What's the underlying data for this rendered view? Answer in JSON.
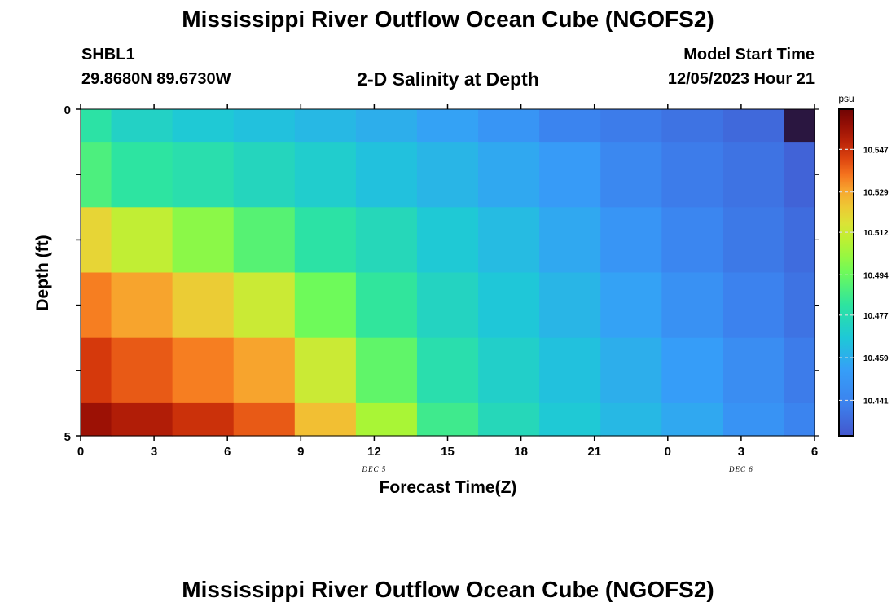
{
  "header": {
    "title": "Mississippi River Outflow Ocean Cube (NGOFS2)",
    "station": "SHBL1",
    "coords": "29.8680N  89.6730W",
    "subtitle": "2-D Salinity at Depth",
    "model_start_label": "Model Start Time",
    "model_start_value": "12/05/2023 Hour 21"
  },
  "footer": {
    "title": "Mississippi River Outflow Ocean Cube (NGOFS2)"
  },
  "chart_data": {
    "type": "heatmap",
    "xlabel": "Forecast Time(Z)",
    "ylabel": "Depth (ft)",
    "x_tick_labels": [
      "0",
      "3",
      "6",
      "9",
      "12",
      "15",
      "18",
      "21",
      "0",
      "3",
      "6"
    ],
    "x_forecast_hours": [
      0,
      3,
      6,
      9,
      12,
      15,
      18,
      21,
      24,
      27,
      30
    ],
    "xlim": [
      0,
      30
    ],
    "date_labels": [
      {
        "text": "DEC 5",
        "x": 12
      },
      {
        "text": "DEC 6",
        "x": 27
      }
    ],
    "y_tick_labels": [
      "0",
      "5"
    ],
    "ylim": [
      0,
      5
    ],
    "colorbar": {
      "unit": "psu",
      "range": [
        10.426,
        10.564
      ],
      "tick_values": [
        "10.547",
        "10.529",
        "10.512",
        "10.494",
        "10.477",
        "10.459",
        "10.441"
      ]
    },
    "col_edges": [
      0,
      1.25,
      3.75,
      6.25,
      8.75,
      11.25,
      13.75,
      16.25,
      18.75,
      21.25,
      23.75,
      26.25,
      28.75,
      30
    ],
    "row_edges": [
      0,
      0.5,
      1.5,
      2.5,
      3.5,
      4.5,
      5
    ],
    "values": [
      [
        10.48,
        10.472,
        10.468,
        10.465,
        10.462,
        10.459,
        10.455,
        10.449,
        10.441,
        10.438,
        10.435,
        10.432,
        10.4
      ],
      [
        10.488,
        10.481,
        10.478,
        10.474,
        10.47,
        10.465,
        10.461,
        10.457,
        10.452,
        10.443,
        10.438,
        10.435,
        10.43
      ],
      [
        10.52,
        10.51,
        10.5,
        10.49,
        10.48,
        10.475,
        10.468,
        10.463,
        10.457,
        10.449,
        10.442,
        10.437,
        10.433
      ],
      [
        10.535,
        10.53,
        10.522,
        10.512,
        10.495,
        10.482,
        10.473,
        10.467,
        10.461,
        10.455,
        10.447,
        10.44,
        10.435
      ],
      [
        10.545,
        10.54,
        10.535,
        10.53,
        10.512,
        10.492,
        10.478,
        10.471,
        10.465,
        10.459,
        10.453,
        10.445,
        10.438
      ],
      [
        10.556,
        10.552,
        10.547,
        10.54,
        10.525,
        10.505,
        10.485,
        10.475,
        10.468,
        10.462,
        10.457,
        10.448,
        10.441
      ]
    ]
  }
}
